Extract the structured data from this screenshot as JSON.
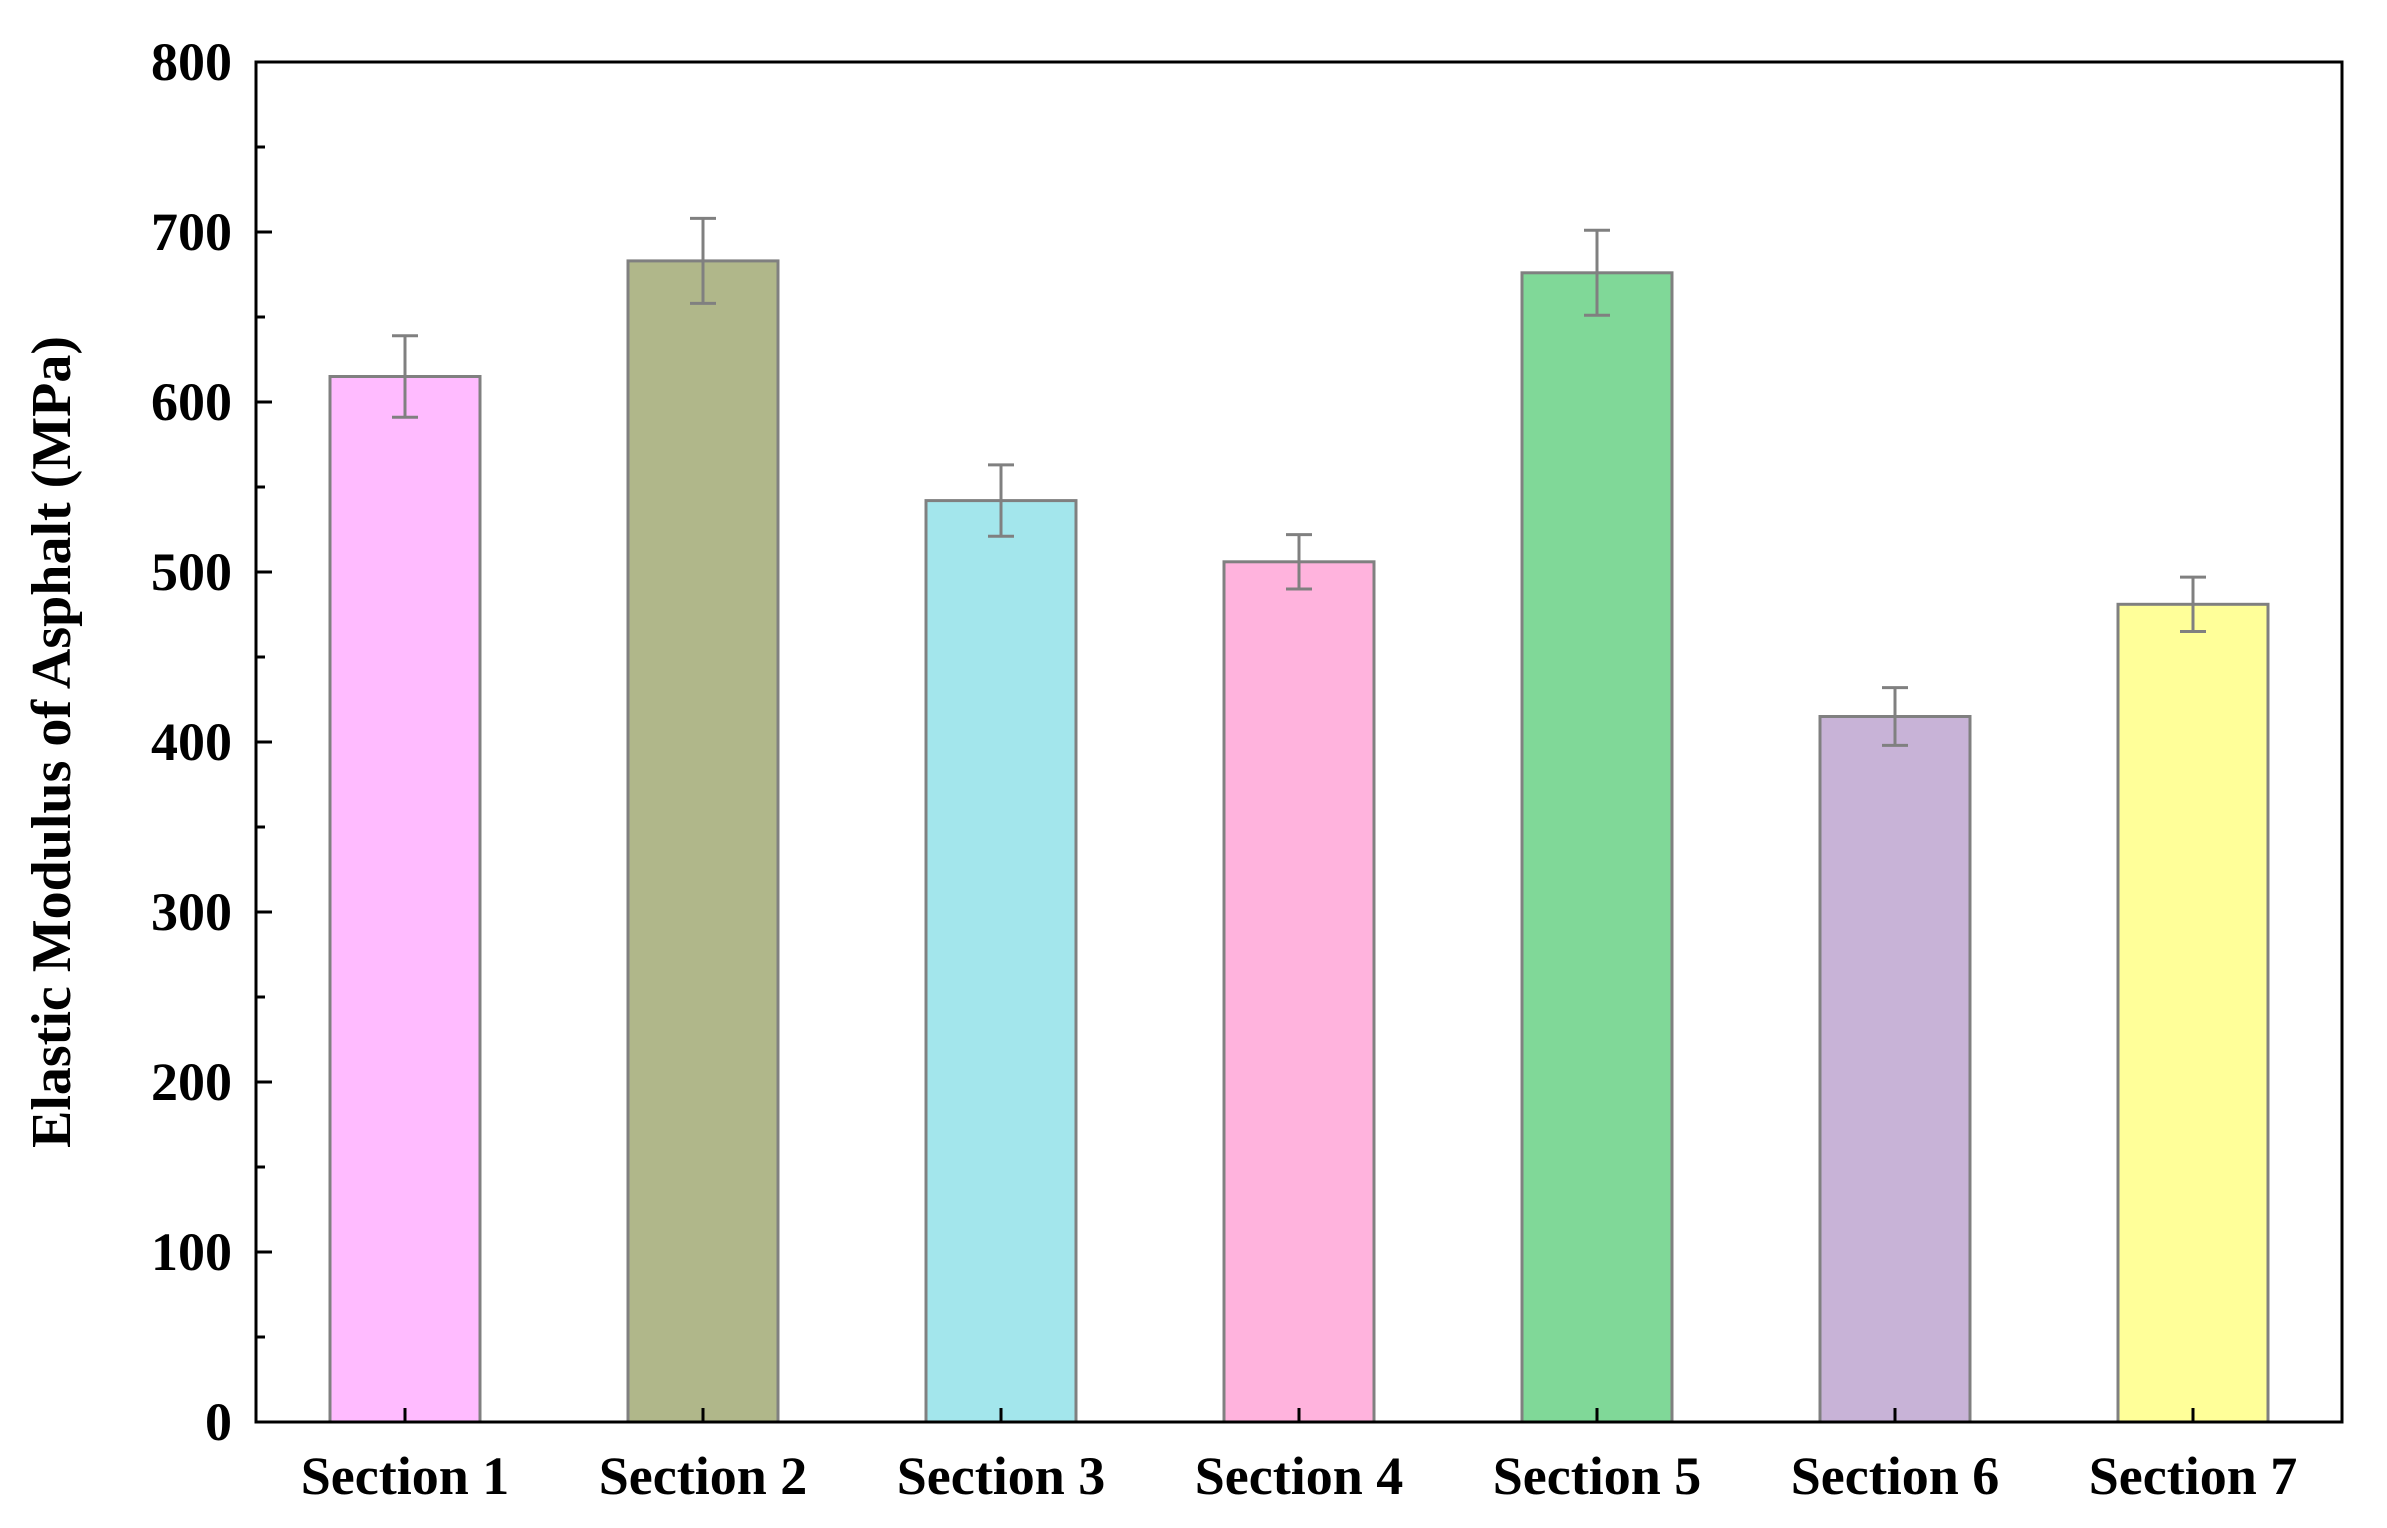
{
  "chart_data": {
    "type": "bar",
    "title": "",
    "xlabel": "",
    "ylabel": "Elastic Modulus of Asphalt (MPa)",
    "ylim": [
      0,
      800
    ],
    "yticks": [
      0,
      100,
      200,
      300,
      400,
      500,
      600,
      700,
      800
    ],
    "grid": false,
    "legend": "none",
    "categories": [
      "Section 1",
      "Section 2",
      "Section 3",
      "Section 4",
      "Section 5",
      "Section 6",
      "Section 7"
    ],
    "values": [
      615,
      683,
      542,
      506,
      676,
      415,
      481
    ],
    "error": [
      24,
      25,
      21,
      16,
      25,
      17,
      16
    ],
    "bar_colors": [
      "#ffbbff",
      "#b0b78a",
      "#a3e6ec",
      "#ffb3dd",
      "#80d898",
      "#c8b3d7",
      "#ffff99"
    ],
    "bar_edge_color": "#808080",
    "error_color": "#808080"
  }
}
